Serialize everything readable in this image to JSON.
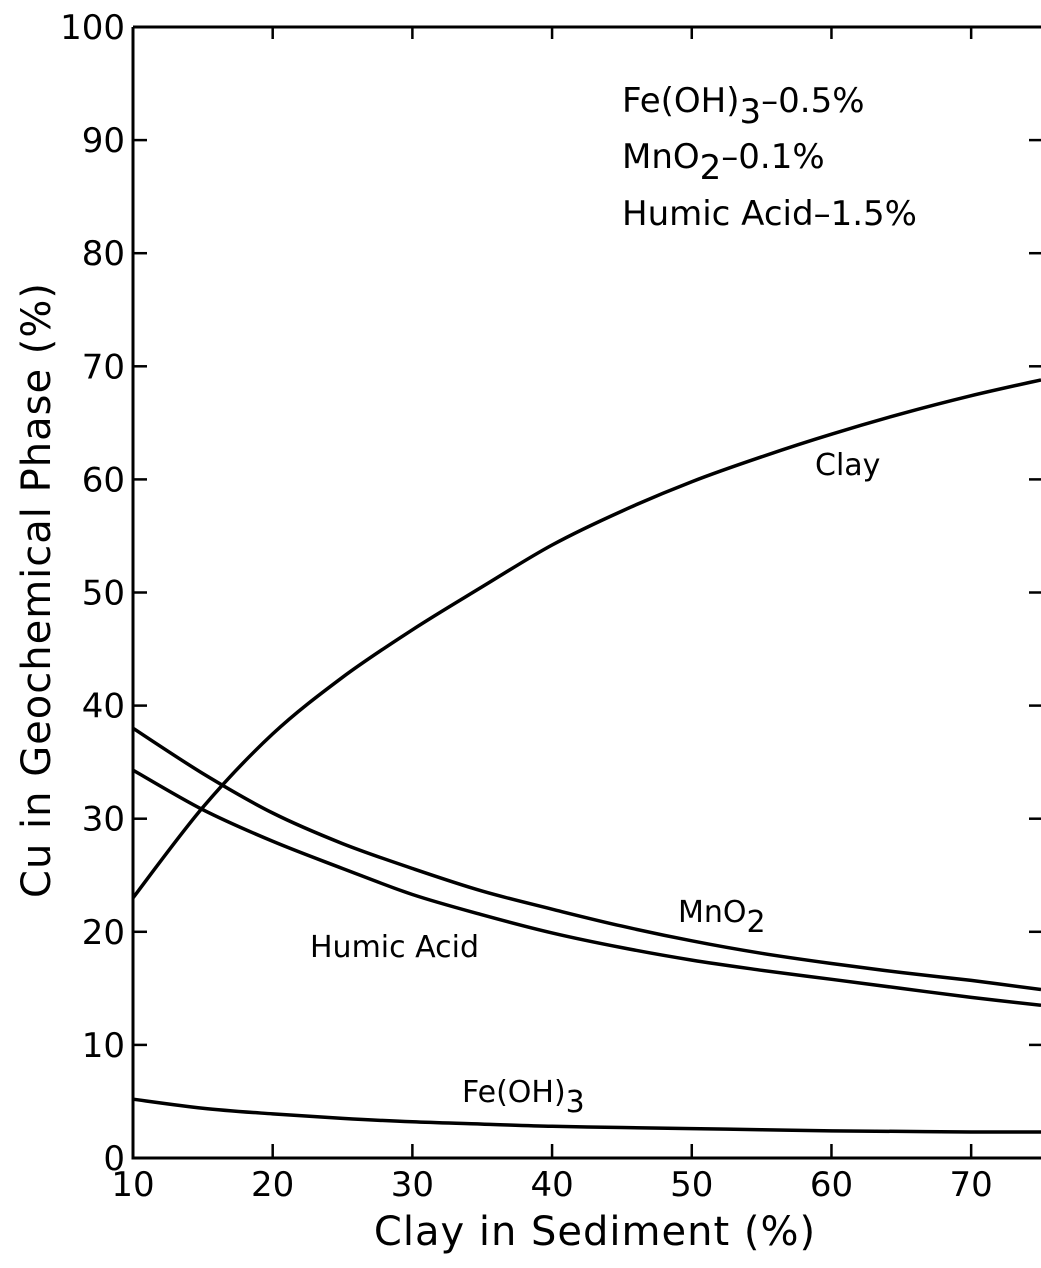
{
  "chart_data": {
    "type": "line",
    "title": "",
    "xlabel": "Clay in Sediment (%)",
    "ylabel": "Cu in Geochemical Phase (%)",
    "xlim": [
      10,
      75
    ],
    "ylim": [
      0,
      100
    ],
    "xticks": [
      "10",
      "20",
      "30",
      "40",
      "50",
      "60",
      "70"
    ],
    "yticks": [
      "0",
      "10",
      "20",
      "30",
      "40",
      "50",
      "60",
      "70",
      "80",
      "90",
      "100"
    ],
    "grid": false,
    "series": [
      {
        "name": "Clay",
        "label": "Clay",
        "x": [
          10,
          15,
          20,
          25,
          30,
          35,
          40,
          45,
          50,
          55,
          60,
          65,
          70,
          75
        ],
        "y": [
          23,
          31,
          37.5,
          42.5,
          46.7,
          50.5,
          54.2,
          57.2,
          59.8,
          62,
          64,
          65.8,
          67.4,
          68.8
        ]
      },
      {
        "name": "MnO2",
        "label_main": "MnO",
        "label_sub": "2",
        "x": [
          10,
          15,
          20,
          25,
          30,
          35,
          40,
          45,
          50,
          55,
          60,
          65,
          70,
          75
        ],
        "y": [
          38,
          34,
          30.5,
          27.8,
          25.6,
          23.6,
          22,
          20.5,
          19.2,
          18.1,
          17.2,
          16.4,
          15.7,
          14.9
        ]
      },
      {
        "name": "Humic Acid",
        "label": "Humic Acid",
        "x": [
          10,
          15,
          20,
          25,
          30,
          35,
          40,
          45,
          50,
          55,
          60,
          65,
          70,
          75
        ],
        "y": [
          34.3,
          30.8,
          28,
          25.6,
          23.3,
          21.5,
          19.9,
          18.6,
          17.5,
          16.6,
          15.8,
          15,
          14.2,
          13.5
        ]
      },
      {
        "name": "Fe(OH)3",
        "label_main": "Fe(OH)",
        "label_sub": "3",
        "x": [
          10,
          15,
          20,
          25,
          30,
          35,
          40,
          45,
          50,
          55,
          60,
          65,
          70,
          75
        ],
        "y": [
          5.2,
          4.4,
          3.9,
          3.5,
          3.2,
          3,
          2.8,
          2.7,
          2.6,
          2.5,
          2.4,
          2.35,
          2.3,
          2.3
        ]
      }
    ],
    "annotation": [
      {
        "main": "Fe(OH)",
        "sub": "3",
        "rest": "–0.5%"
      },
      {
        "main": "MnO",
        "sub": "2",
        "rest": "–0.1%"
      },
      {
        "main": "Humic Acid–1.5%",
        "sub": "",
        "rest": ""
      }
    ]
  }
}
